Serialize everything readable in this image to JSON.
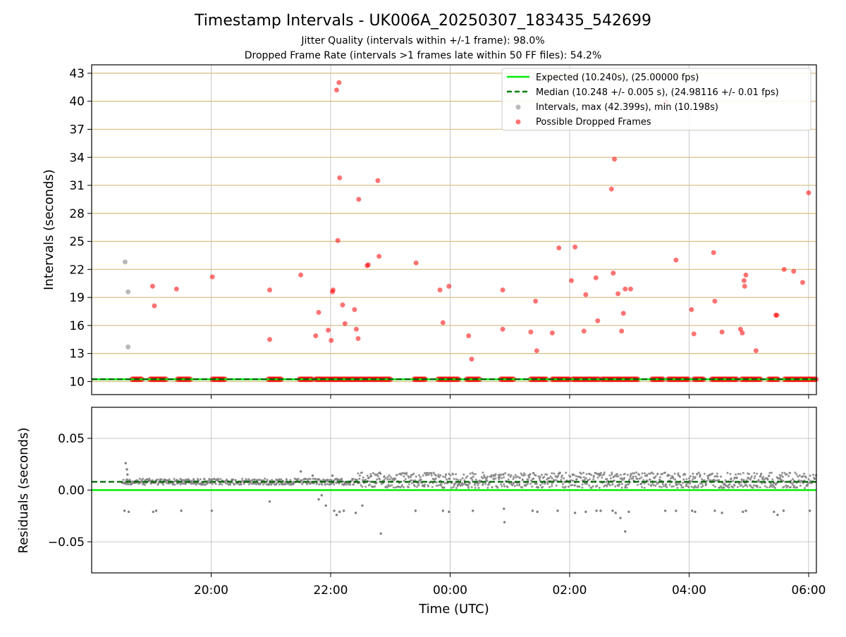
{
  "chart_data": [
    {
      "type": "scatter",
      "title": "Timestamp Intervals - UK006A_20250307_183435_542699",
      "subtitle_lines": [
        "Jitter Quality (intervals within +/-1 frame): 98.0%",
        "Dropped Frame Rate (intervals >1 frames late within 50 FF files): 54.2%"
      ],
      "ylabel": "Intervals (seconds)",
      "x_unit": "hours (UTC, relative to 00:00 on 2025-03-08)",
      "xlim": [
        -6.0,
        6.13
      ],
      "ylim": [
        8.6,
        43.9
      ],
      "yticks": [
        10,
        13,
        16,
        19,
        22,
        25,
        28,
        31,
        34,
        37,
        40,
        43
      ],
      "xticks": [
        -4,
        -2,
        0,
        2,
        4,
        6
      ],
      "grid": true,
      "legend_position": "top-right",
      "legend": [
        {
          "label": "Expected (10.240s), (25.00000 fps)",
          "kind": "solid-line",
          "color": "#00ee00"
        },
        {
          "label": "Median (10.248 +/- 0.005 s), (24.98116 +/- 0.01 fps)",
          "kind": "dashed-line",
          "color": "#008000"
        },
        {
          "label": "Intervals, max (42.399s), min (10.198s)",
          "kind": "marker",
          "color": "#808080"
        },
        {
          "label": "Possible Dropped Frames",
          "kind": "marker",
          "color": "#ff0000"
        }
      ],
      "expected_interval": 10.24,
      "median_interval": 10.248,
      "series": [
        {
          "name": "Intervals, max (42.399s), min (10.198s)",
          "color": "#808080",
          "points": [
            [
              -5.44,
              22.8
            ],
            [
              -5.39,
              19.6
            ],
            [
              -5.39,
              13.7
            ]
          ]
        },
        {
          "name": "Possible Dropped Frames",
          "color": "#ff0000",
          "points": [
            [
              -4.98,
              20.2
            ],
            [
              -4.95,
              18.1
            ],
            [
              -4.58,
              19.9
            ],
            [
              -3.98,
              21.2
            ],
            [
              -3.02,
              19.8
            ],
            [
              -3.02,
              14.5
            ],
            [
              -2.5,
              21.4
            ],
            [
              -2.25,
              14.9
            ],
            [
              -2.2,
              17.4
            ],
            [
              -2.04,
              15.5
            ],
            [
              -1.99,
              14.4
            ],
            [
              -1.97,
              19.6
            ],
            [
              -1.96,
              19.8
            ],
            [
              -1.9,
              41.2
            ],
            [
              -1.86,
              42.0
            ],
            [
              -1.88,
              25.1
            ],
            [
              -1.85,
              31.8
            ],
            [
              -1.8,
              18.2
            ],
            [
              -1.76,
              16.2
            ],
            [
              -1.6,
              17.7
            ],
            [
              -1.57,
              15.6
            ],
            [
              -1.54,
              14.6
            ],
            [
              -1.53,
              29.5
            ],
            [
              -1.39,
              22.4
            ],
            [
              -1.37,
              22.5
            ],
            [
              -1.21,
              31.5
            ],
            [
              -1.19,
              23.4
            ],
            [
              -0.57,
              22.7
            ],
            [
              -0.17,
              19.8
            ],
            [
              -0.12,
              16.3
            ],
            [
              -0.02,
              20.2
            ],
            [
              0.31,
              14.9
            ],
            [
              0.36,
              12.4
            ],
            [
              0.88,
              19.8
            ],
            [
              0.88,
              15.6
            ],
            [
              1.35,
              15.3
            ],
            [
              1.43,
              18.6
            ],
            [
              1.45,
              13.3
            ],
            [
              1.71,
              15.2
            ],
            [
              1.82,
              24.3
            ],
            [
              2.03,
              20.8
            ],
            [
              2.09,
              24.4
            ],
            [
              2.24,
              15.4
            ],
            [
              2.27,
              19.3
            ],
            [
              2.44,
              21.1
            ],
            [
              2.47,
              16.5
            ],
            [
              2.7,
              30.6
            ],
            [
              2.73,
              21.6
            ],
            [
              2.75,
              33.8
            ],
            [
              2.81,
              19.4
            ],
            [
              2.87,
              15.4
            ],
            [
              2.9,
              17.3
            ],
            [
              2.93,
              19.9
            ],
            [
              3.02,
              19.9
            ],
            [
              3.61,
              39.9
            ],
            [
              3.78,
              23.0
            ],
            [
              4.04,
              17.7
            ],
            [
              4.08,
              15.1
            ],
            [
              4.43,
              18.6
            ],
            [
              4.41,
              23.8
            ],
            [
              4.55,
              15.3
            ],
            [
              4.86,
              15.6
            ],
            [
              4.89,
              15.2
            ],
            [
              4.92,
              20.8
            ],
            [
              4.93,
              20.2
            ],
            [
              4.95,
              21.4
            ],
            [
              5.12,
              13.3
            ],
            [
              5.45,
              17.1
            ],
            [
              5.47,
              17.1
            ],
            [
              5.59,
              22.0
            ],
            [
              5.75,
              21.8
            ],
            [
              5.9,
              20.6
            ],
            [
              6.0,
              30.2
            ]
          ]
        }
      ],
      "baseline_dropped_ranges": [
        [
          -5.32,
          -5.14
        ],
        [
          -5.02,
          -4.76
        ],
        [
          -4.56,
          -4.35
        ],
        [
          -3.98,
          -3.76
        ],
        [
          -3.04,
          -2.82
        ],
        [
          -2.52,
          -2.3
        ],
        [
          -2.25,
          -1.0
        ],
        [
          -0.6,
          -0.4
        ],
        [
          -0.2,
          0.15
        ],
        [
          0.28,
          0.5
        ],
        [
          0.85,
          1.07
        ],
        [
          1.35,
          1.62
        ],
        [
          1.71,
          2.0
        ],
        [
          2.05,
          2.5
        ],
        [
          2.54,
          3.15
        ],
        [
          3.38,
          3.58
        ],
        [
          3.65,
          4.0
        ],
        [
          4.08,
          4.25
        ],
        [
          4.38,
          4.8
        ],
        [
          4.88,
          5.2
        ],
        [
          5.33,
          5.5
        ],
        [
          5.6,
          6.13
        ]
      ],
      "baseline_interval": 10.24
    },
    {
      "type": "scatter",
      "ylabel": "Residuals (seconds)",
      "xlabel": "Time (UTC)",
      "xlim": [
        -6.0,
        6.13
      ],
      "ylim": [
        -0.08,
        0.08
      ],
      "yticks": [
        0.05,
        0.0,
        -0.05
      ],
      "ytick_labels": [
        "0.05",
        "0.00",
        "−0.05"
      ],
      "xticks": [
        -4,
        -2,
        0,
        2,
        4,
        6
      ],
      "xtick_labels": [
        "20:00",
        "22:00",
        "00:00",
        "02:00",
        "04:00",
        "06:00"
      ],
      "grid": true,
      "expected_residual": 0.0,
      "median_residual": 0.008,
      "series": [
        {
          "name": "Residuals",
          "color": "#808080",
          "points": [
            [
              -5.43,
              0.026
            ],
            [
              -5.41,
              0.02
            ],
            [
              -5.4,
              0.015
            ],
            [
              -5.45,
              -0.02
            ],
            [
              -5.38,
              -0.021
            ],
            [
              -4.97,
              -0.021
            ],
            [
              -4.92,
              -0.02
            ],
            [
              -4.5,
              -0.02
            ],
            [
              -3.99,
              -0.02
            ],
            [
              -3.02,
              -0.011
            ],
            [
              -2.5,
              0.018
            ],
            [
              -2.3,
              0.014
            ],
            [
              -2.2,
              -0.009
            ],
            [
              -2.15,
              -0.005
            ],
            [
              -2.08,
              -0.015
            ],
            [
              -1.97,
              0.014
            ],
            [
              -1.94,
              -0.02
            ],
            [
              -1.9,
              -0.024
            ],
            [
              -1.85,
              -0.021
            ],
            [
              -1.78,
              -0.02
            ],
            [
              -1.58,
              -0.022
            ],
            [
              -1.47,
              -0.015
            ],
            [
              -1.16,
              -0.042
            ],
            [
              -0.58,
              -0.02
            ],
            [
              -0.12,
              -0.02
            ],
            [
              -0.02,
              -0.021
            ],
            [
              0.38,
              -0.02
            ],
            [
              0.9,
              -0.018
            ],
            [
              0.91,
              -0.031
            ],
            [
              1.38,
              -0.02
            ],
            [
              1.46,
              -0.021
            ],
            [
              1.8,
              -0.02
            ],
            [
              2.09,
              -0.022
            ],
            [
              2.27,
              -0.021
            ],
            [
              2.45,
              -0.02
            ],
            [
              2.52,
              -0.02
            ],
            [
              2.72,
              -0.02
            ],
            [
              2.77,
              -0.022
            ],
            [
              2.85,
              -0.027
            ],
            [
              2.93,
              -0.04
            ],
            [
              2.99,
              -0.021
            ],
            [
              3.6,
              -0.02
            ],
            [
              3.78,
              -0.02
            ],
            [
              4.05,
              -0.02
            ],
            [
              4.1,
              -0.021
            ],
            [
              4.43,
              -0.02
            ],
            [
              4.55,
              -0.022
            ],
            [
              4.9,
              -0.021
            ],
            [
              4.95,
              -0.02
            ],
            [
              5.42,
              -0.021
            ],
            [
              5.48,
              -0.024
            ],
            [
              5.58,
              -0.02
            ],
            [
              6.02,
              -0.02
            ]
          ]
        }
      ],
      "dense_band": {
        "segments": [
          {
            "x_range": [
              -5.5,
              -1.55
            ],
            "y_range": [
              0.005,
              0.011
            ]
          },
          {
            "x_range": [
              -1.55,
              6.13
            ],
            "y_range": [
              0.002,
              0.017
            ]
          }
        ]
      }
    }
  ]
}
